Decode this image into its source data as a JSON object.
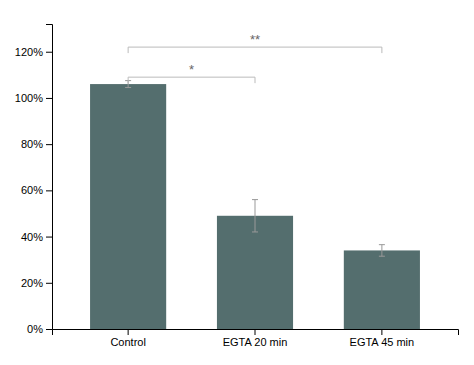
{
  "chart_data": {
    "type": "bar",
    "categories": [
      "Control",
      "EGTA 20 min",
      "EGTA 45 min"
    ],
    "values": [
      1.06,
      0.49,
      0.34
    ],
    "errors": [
      0.015,
      0.07,
      0.025
    ],
    "color": "#546e6e",
    "ylim": [
      0,
      1.32
    ],
    "yticks": [
      {
        "value": 0,
        "label": "0%"
      },
      {
        "value": 0.2,
        "label": "20%"
      },
      {
        "value": 0.4,
        "label": "40%"
      },
      {
        "value": 0.6,
        "label": "60%"
      },
      {
        "value": 0.8,
        "label": "80%"
      },
      {
        "value": 1.0,
        "label": "100%"
      },
      {
        "value": 1.2,
        "label": "120%"
      }
    ],
    "grid": false,
    "annotations": [
      {
        "text": "*",
        "from": "Control",
        "to": "EGTA 20 min",
        "y": 1.09
      },
      {
        "text": "**",
        "from": "Control",
        "to": "EGTA 45 min",
        "y": 1.22
      }
    ]
  }
}
